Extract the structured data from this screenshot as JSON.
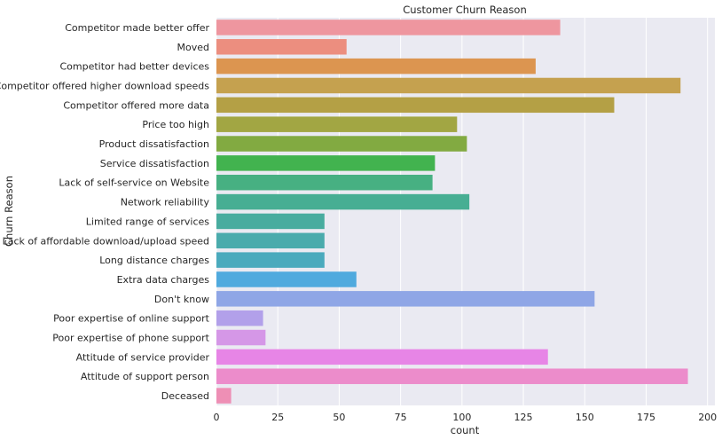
{
  "chart_data": {
    "type": "bar",
    "orientation": "horizontal",
    "title": "Customer Churn Reason",
    "xlabel": "count",
    "ylabel": "Churn Reason",
    "xlim": [
      0,
      203
    ],
    "x_ticks": [
      0,
      25,
      50,
      75,
      100,
      125,
      150,
      175,
      200
    ],
    "grid": true,
    "legend": "none",
    "categories": [
      "Competitor made better offer",
      "Moved",
      "Competitor had better devices",
      "Competitor offered higher download speeds",
      "Competitor offered more data",
      "Price too high",
      "Product dissatisfaction",
      "Service dissatisfaction",
      "Lack of self-service on Website",
      "Network reliability",
      "Limited range of services",
      "Lack of affordable download/upload speed",
      "Long distance charges",
      "Extra data charges",
      "Don't know",
      "Poor expertise of online support",
      "Poor expertise of phone support",
      "Attitude of service provider",
      "Attitude of support person",
      "Deceased"
    ],
    "values": [
      140,
      53,
      130,
      189,
      162,
      98,
      102,
      89,
      88,
      103,
      44,
      44,
      44,
      57,
      154,
      19,
      20,
      135,
      192,
      6
    ],
    "colors": [
      "#ee969f",
      "#ec8e7f",
      "#dc9550",
      "#c5a14f",
      "#b4a045",
      "#a2a643",
      "#82aa41",
      "#42b34f",
      "#47b082",
      "#47ae93",
      "#48ac9f",
      "#4aabac",
      "#4aaabd",
      "#50aade",
      "#8fa6e6",
      "#b2a0ea",
      "#d597e7",
      "#e785e6",
      "#ec8ccb",
      "#ee8fb5"
    ],
    "background": "#eaeaf2",
    "gridline_color": "#ffffff"
  }
}
